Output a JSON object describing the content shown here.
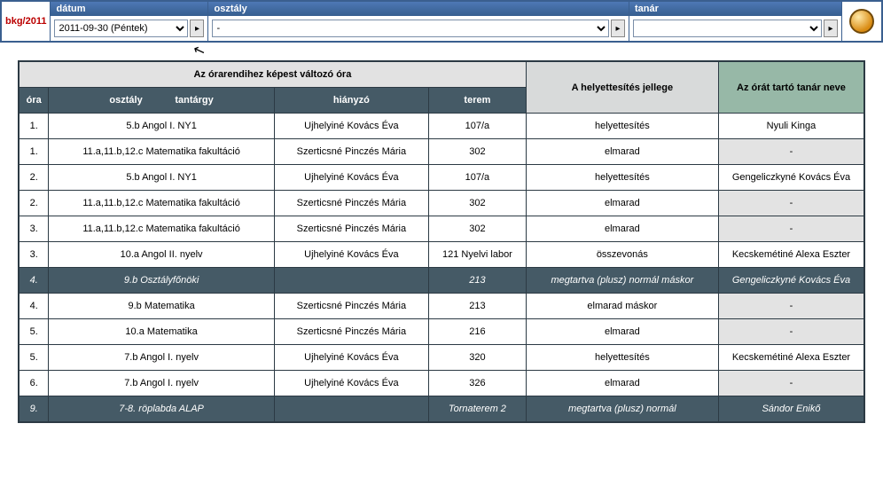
{
  "logo": "bkg/2011",
  "selectors": {
    "date": {
      "label": "dátum",
      "value": "2011-09-30 (Péntek)"
    },
    "class": {
      "label": "osztály",
      "value": "-"
    },
    "teacher": {
      "label": "tanár",
      "value": ""
    }
  },
  "headers": {
    "group_changed": "Az órarendihez képest változó óra",
    "group_type": "A helyettesítés jellege",
    "group_sub": "Az órát tartó tanár neve",
    "ora": "óra",
    "osztaly": "osztály",
    "tantargy": "tantárgy",
    "hianyzo": "hiányzó",
    "terem": "terem"
  },
  "rows": [
    {
      "ora": "1.",
      "class_subject": "5.b Angol I. NY1",
      "missing": "Ujhelyiné Kovács Éva",
      "room": "107/a",
      "type": "helyettesítés",
      "sub": "Nyuli Kinga",
      "dark": false
    },
    {
      "ora": "1.",
      "class_subject": "11.a,11.b,12.c Matematika fakultáció",
      "missing": "Szerticsné Pinczés Mária",
      "room": "302",
      "type": "elmarad",
      "sub": "-",
      "dark": false
    },
    {
      "ora": "2.",
      "class_subject": "5.b Angol I. NY1",
      "missing": "Ujhelyiné Kovács Éva",
      "room": "107/a",
      "type": "helyettesítés",
      "sub": "Gengeliczkyné Kovács Éva",
      "dark": false
    },
    {
      "ora": "2.",
      "class_subject": "11.a,11.b,12.c Matematika fakultáció",
      "missing": "Szerticsné Pinczés Mária",
      "room": "302",
      "type": "elmarad",
      "sub": "-",
      "dark": false
    },
    {
      "ora": "3.",
      "class_subject": "11.a,11.b,12.c Matematika fakultáció",
      "missing": "Szerticsné Pinczés Mária",
      "room": "302",
      "type": "elmarad",
      "sub": "-",
      "dark": false
    },
    {
      "ora": "3.",
      "class_subject": "10.a Angol II. nyelv",
      "missing": "Ujhelyiné Kovács Éva",
      "room": "121 Nyelvi labor",
      "type": "összevonás",
      "sub": "Kecskemétiné Alexa Eszter",
      "dark": false
    },
    {
      "ora": "4.",
      "class_subject": "9.b Osztályfőnöki",
      "missing": "",
      "room": "213",
      "type": "megtartva (plusz) normál máskor",
      "sub": "Gengeliczkyné Kovács Éva",
      "dark": true
    },
    {
      "ora": "4.",
      "class_subject": "9.b Matematika",
      "missing": "Szerticsné Pinczés Mária",
      "room": "213",
      "type": "elmarad máskor",
      "sub": "-",
      "dark": false
    },
    {
      "ora": "5.",
      "class_subject": "10.a Matematika",
      "missing": "Szerticsné Pinczés Mária",
      "room": "216",
      "type": "elmarad",
      "sub": "-",
      "dark": false
    },
    {
      "ora": "5.",
      "class_subject": "7.b Angol I. nyelv",
      "missing": "Ujhelyiné Kovács Éva",
      "room": "320",
      "type": "helyettesítés",
      "sub": "Kecskemétiné Alexa Eszter",
      "dark": false
    },
    {
      "ora": "6.",
      "class_subject": "7.b Angol I. nyelv",
      "missing": "Ujhelyiné Kovács Éva",
      "room": "326",
      "type": "elmarad",
      "sub": "-",
      "dark": false
    },
    {
      "ora": "9.",
      "class_subject": "7-8. röplabda ALAP",
      "missing": "",
      "room": "Tornaterem 2",
      "type": "megtartva (plusz) normál",
      "sub": "Sándor Enikő",
      "dark": true
    }
  ],
  "colors": {
    "header_bg": "#455a66",
    "group_a": "#e2e2e2",
    "group_c": "#97b8a7",
    "border": "#2c3a44"
  }
}
